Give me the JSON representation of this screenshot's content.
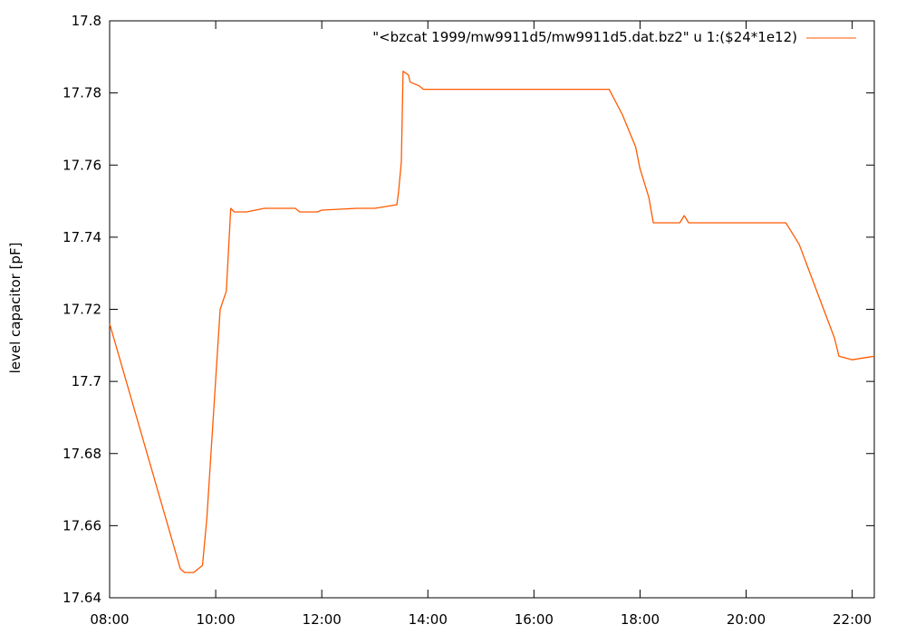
{
  "chart_data": {
    "type": "line",
    "title": "",
    "xlabel": "",
    "ylabel": "level capacitor [pF]",
    "legend_position": "top-right",
    "grid": false,
    "xlim": [
      "08:00",
      "22:25"
    ],
    "ylim": [
      17.64,
      17.8
    ],
    "x_ticks": [
      "08:00",
      "10:00",
      "12:00",
      "14:00",
      "16:00",
      "18:00",
      "20:00",
      "22:00"
    ],
    "y_ticks": [
      "17.64",
      "17.66",
      "17.68",
      "17.7",
      "17.72",
      "17.74",
      "17.76",
      "17.78",
      "17.8"
    ],
    "series": [
      {
        "name": "\"<bzcat 1999/mw9911d5/mw9911d5.dat.bz2\" u 1:($24*1e12)",
        "color": "#ff5a00",
        "x": [
          "08:00",
          "09:20",
          "09:25",
          "09:35",
          "09:45",
          "09:50",
          "10:05",
          "10:12",
          "10:17",
          "10:21",
          "10:25",
          "10:35",
          "10:55",
          "11:00",
          "11:30",
          "11:35",
          "11:55",
          "12:00",
          "12:40",
          "13:00",
          "13:25",
          "13:27",
          "13:30",
          "13:32",
          "13:38",
          "13:40",
          "13:50",
          "13:55",
          "14:00",
          "14:30",
          "15:00",
          "15:30",
          "16:00",
          "16:30",
          "17:00",
          "17:25",
          "17:40",
          "17:55",
          "18:00",
          "18:10",
          "18:15",
          "18:25",
          "18:45",
          "18:50",
          "18:55",
          "19:05",
          "19:10",
          "19:30",
          "20:00",
          "20:30",
          "20:45",
          "21:00",
          "21:20",
          "21:40",
          "21:45",
          "22:00",
          "22:25"
        ],
        "values": [
          17.716,
          17.648,
          17.647,
          17.647,
          17.649,
          17.662,
          17.72,
          17.725,
          17.748,
          17.747,
          17.747,
          17.747,
          17.748,
          17.748,
          17.748,
          17.747,
          17.747,
          17.7475,
          17.748,
          17.748,
          17.749,
          17.753,
          17.761,
          17.786,
          17.785,
          17.783,
          17.782,
          17.781,
          17.781,
          17.781,
          17.781,
          17.781,
          17.781,
          17.781,
          17.781,
          17.781,
          17.774,
          17.765,
          17.759,
          17.751,
          17.744,
          17.744,
          17.744,
          17.746,
          17.744,
          17.744,
          17.744,
          17.744,
          17.744,
          17.744,
          17.744,
          17.738,
          17.725,
          17.712,
          17.707,
          17.706,
          17.707
        ]
      }
    ]
  }
}
